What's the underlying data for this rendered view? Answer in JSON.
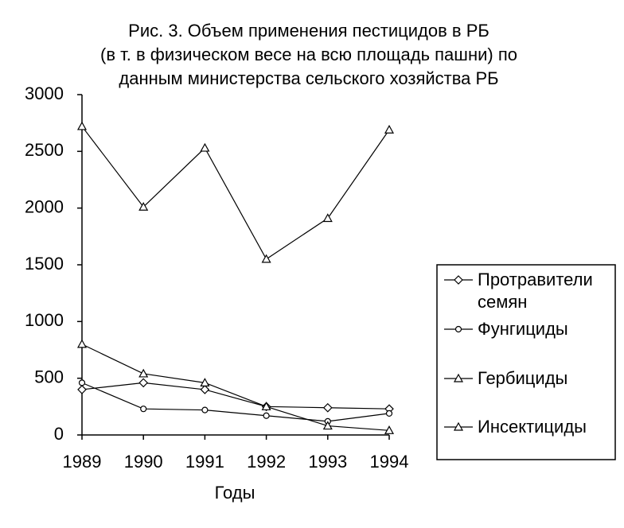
{
  "chart_data": {
    "type": "line",
    "title": [
      "Рис. 3. Объем применения пестицидов в РБ",
      "(в т. в физическом весе на всю площадь пашни) по",
      "данным министерства сельского хозяйства РБ"
    ],
    "x_label": "Годы",
    "categories": [
      "1989",
      "1990",
      "1991",
      "1992",
      "1993",
      "1994"
    ],
    "ylim": [
      0,
      3000
    ],
    "yticks": [
      0,
      500,
      1000,
      1500,
      2000,
      2500,
      3000
    ],
    "legend": "right",
    "series": [
      {
        "name": "Протравители семян",
        "color": "#000000",
        "marker": "diamond",
        "values": [
          400,
          460,
          400,
          250,
          240,
          230
        ]
      },
      {
        "name": "Фунгициды",
        "color": "#000000",
        "marker": "circle",
        "values": [
          460,
          230,
          220,
          170,
          120,
          190
        ]
      },
      {
        "name": "Гербициды",
        "color": "#000000",
        "marker": "triangle",
        "values": [
          2720,
          2010,
          2530,
          1550,
          1910,
          2690
        ]
      },
      {
        "name": "Инсектициды",
        "color": "#000000",
        "marker": "triangle",
        "values": [
          800,
          540,
          460,
          250,
          80,
          40
        ]
      }
    ]
  }
}
